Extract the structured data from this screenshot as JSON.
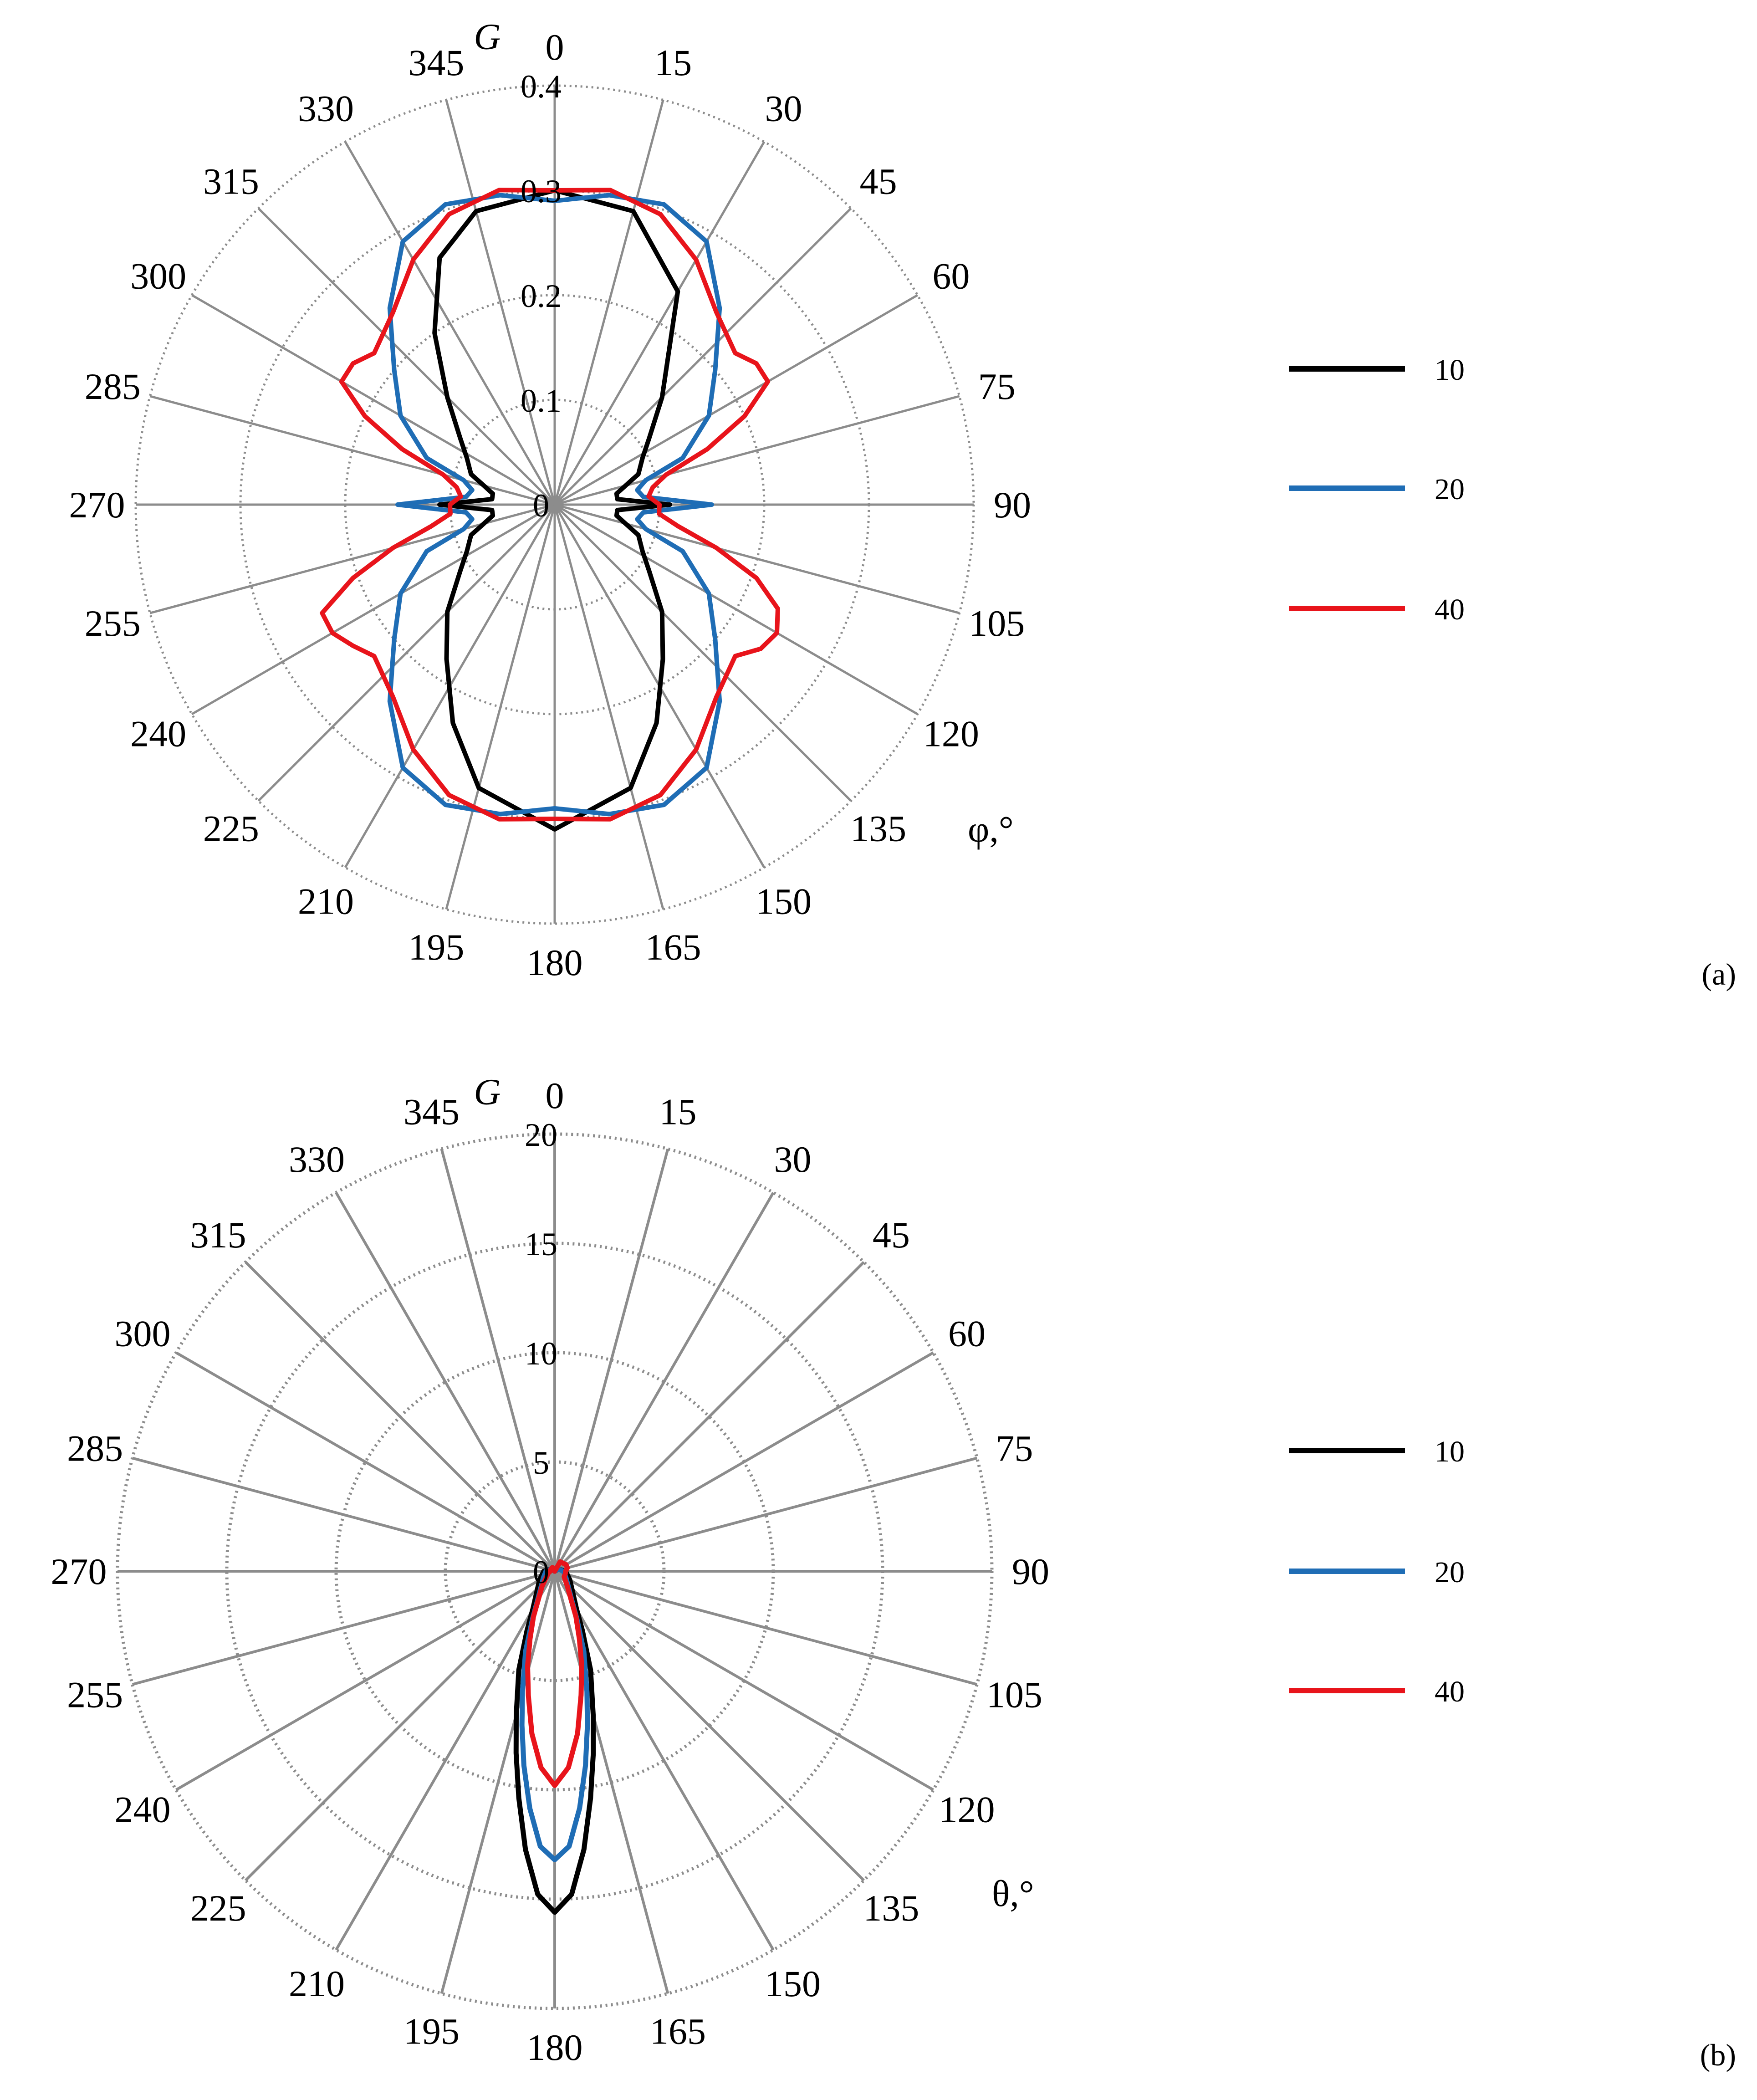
{
  "colors": {
    "s10": "#000000",
    "s20": "#1f6db5",
    "s40": "#e8141b",
    "spoke": "#8c8c8c",
    "ring": "#8c8c8c"
  },
  "chart_data": [
    {
      "type": "polar-line",
      "panel_label": "(a)",
      "radial_label": "G",
      "angular_label": "φ,°",
      "angle_ticks": [
        "0",
        "15",
        "30",
        "45",
        "60",
        "75",
        "90",
        "105",
        "120",
        "135",
        "150",
        "165",
        "180",
        "195",
        "210",
        "225",
        "240",
        "255",
        "270",
        "285",
        "300",
        "315",
        "330",
        "345"
      ],
      "radial_ticks": [
        "0",
        "0.1",
        "0.2",
        "0.3",
        "0.4"
      ],
      "rlim": [
        0,
        0.4
      ],
      "angle_unit": "degrees",
      "zero_direction": "top",
      "rotation": "clockwise",
      "grid": true,
      "legend_position": "right",
      "series": [
        {
          "name": "10",
          "color_key": "s10",
          "theta": [
            0,
            15,
            30,
            45,
            55,
            62,
            70,
            75,
            80,
            85,
            90,
            95,
            100,
            105,
            110,
            118,
            125,
            135,
            145,
            155,
            165,
            180,
            195,
            205,
            215,
            225,
            235,
            242,
            250,
            255,
            260,
            265,
            270,
            275,
            280,
            285,
            290,
            298,
            305,
            315,
            325,
            335,
            345
          ],
          "r": [
            0.3,
            0.29,
            0.235,
            0.145,
            0.11,
            0.095,
            0.085,
            0.07,
            0.06,
            0.06,
            0.11,
            0.06,
            0.06,
            0.07,
            0.085,
            0.095,
            0.11,
            0.145,
            0.18,
            0.23,
            0.28,
            0.31,
            0.28,
            0.23,
            0.18,
            0.145,
            0.11,
            0.095,
            0.085,
            0.07,
            0.06,
            0.06,
            0.11,
            0.06,
            0.06,
            0.07,
            0.085,
            0.095,
            0.11,
            0.145,
            0.2,
            0.26,
            0.29
          ]
        },
        {
          "name": "20",
          "color_key": "s20",
          "theta": [
            0,
            10,
            20,
            30,
            40,
            50,
            60,
            70,
            75,
            80,
            85,
            90,
            95,
            100,
            105,
            110,
            120,
            130,
            140,
            150,
            160,
            170,
            180,
            190,
            200,
            210,
            220,
            230,
            240,
            250,
            255,
            260,
            265,
            270,
            275,
            280,
            285,
            290,
            300,
            310,
            320,
            330,
            340,
            350
          ],
          "r": [
            0.29,
            0.3,
            0.305,
            0.29,
            0.245,
            0.2,
            0.17,
            0.13,
            0.09,
            0.08,
            0.085,
            0.15,
            0.085,
            0.08,
            0.09,
            0.13,
            0.17,
            0.2,
            0.245,
            0.29,
            0.305,
            0.3,
            0.29,
            0.3,
            0.305,
            0.29,
            0.245,
            0.2,
            0.17,
            0.13,
            0.09,
            0.08,
            0.085,
            0.15,
            0.085,
            0.08,
            0.09,
            0.13,
            0.17,
            0.2,
            0.245,
            0.29,
            0.305,
            0.3
          ]
        },
        {
          "name": "40",
          "color_key": "s40",
          "theta": [
            0,
            10,
            20,
            30,
            40,
            50,
            55,
            60,
            65,
            70,
            75,
            80,
            85,
            90,
            95,
            100,
            105,
            110,
            115,
            120,
            125,
            130,
            140,
            150,
            160,
            170,
            180,
            190,
            200,
            210,
            220,
            230,
            235,
            240,
            245,
            250,
            255,
            260,
            265,
            270,
            275,
            280,
            285,
            290,
            295,
            300,
            305,
            310,
            320,
            330,
            340,
            350
          ],
          "r": [
            0.3,
            0.305,
            0.295,
            0.27,
            0.24,
            0.225,
            0.235,
            0.235,
            0.2,
            0.155,
            0.11,
            0.095,
            0.09,
            0.1,
            0.1,
            0.12,
            0.16,
            0.205,
            0.235,
            0.245,
            0.24,
            0.225,
            0.24,
            0.27,
            0.295,
            0.305,
            0.3,
            0.305,
            0.295,
            0.27,
            0.24,
            0.225,
            0.235,
            0.245,
            0.245,
            0.205,
            0.16,
            0.12,
            0.1,
            0.1,
            0.09,
            0.095,
            0.11,
            0.155,
            0.2,
            0.235,
            0.235,
            0.225,
            0.24,
            0.27,
            0.295,
            0.305
          ]
        }
      ]
    },
    {
      "type": "polar-line",
      "panel_label": "(b)",
      "radial_label": "G",
      "angular_label": "θ,°",
      "angle_ticks": [
        "0",
        "15",
        "30",
        "45",
        "60",
        "75",
        "90",
        "105",
        "120",
        "135",
        "150",
        "165",
        "180",
        "195",
        "210",
        "225",
        "240",
        "255",
        "270",
        "285",
        "300",
        "315",
        "330",
        "345"
      ],
      "radial_ticks": [
        "0",
        "5",
        "10",
        "15",
        "20"
      ],
      "rlim": [
        0,
        20
      ],
      "angle_unit": "degrees",
      "zero_direction": "top",
      "rotation": "clockwise",
      "grid": true,
      "legend_position": "right",
      "series": [
        {
          "name": "10",
          "color_key": "s10",
          "theta": [
            0,
            60,
            90,
            120,
            150,
            155,
            160,
            165,
            168,
            171,
            174,
            177,
            180,
            183,
            186,
            189,
            192,
            195,
            200,
            205,
            210,
            240,
            270,
            300,
            0
          ],
          "r": [
            0.0,
            0.2,
            0.5,
            0.8,
            2.0,
            3.0,
            4.8,
            6.8,
            8.5,
            10.5,
            12.8,
            14.8,
            15.6,
            14.8,
            12.8,
            10.5,
            8.5,
            6.8,
            4.8,
            3.0,
            2.0,
            0.8,
            0.5,
            0.2,
            0.0
          ]
        },
        {
          "name": "20",
          "color_key": "s20",
          "theta": [
            0,
            60,
            90,
            120,
            150,
            155,
            160,
            165,
            168,
            171,
            174,
            177,
            180,
            183,
            186,
            189,
            192,
            195,
            200,
            205,
            210,
            240,
            270,
            300,
            0
          ],
          "r": [
            0.0,
            0.2,
            0.4,
            0.6,
            1.6,
            2.4,
            3.9,
            5.7,
            7.2,
            9.0,
            10.9,
            12.6,
            13.2,
            12.6,
            10.9,
            9.0,
            7.2,
            5.7,
            3.9,
            2.4,
            1.6,
            0.6,
            0.4,
            0.2,
            0.0
          ]
        },
        {
          "name": "40",
          "color_key": "s40",
          "theta": [
            0,
            30,
            60,
            75,
            90,
            105,
            120,
            140,
            150,
            155,
            160,
            164,
            168,
            172,
            176,
            180,
            184,
            188,
            192,
            196,
            200,
            205,
            210,
            220,
            240,
            255,
            270,
            285,
            300,
            330,
            0
          ],
          "r": [
            0.0,
            0.5,
            0.6,
            0.6,
            0.5,
            0.5,
            0.5,
            0.9,
            1.5,
            2.3,
            3.3,
            4.5,
            5.8,
            7.5,
            9.0,
            9.8,
            9.0,
            7.5,
            5.8,
            4.5,
            3.3,
            2.3,
            1.5,
            0.9,
            0.4,
            0.3,
            0.2,
            0.2,
            0.2,
            0.2,
            0.0
          ]
        }
      ]
    }
  ]
}
